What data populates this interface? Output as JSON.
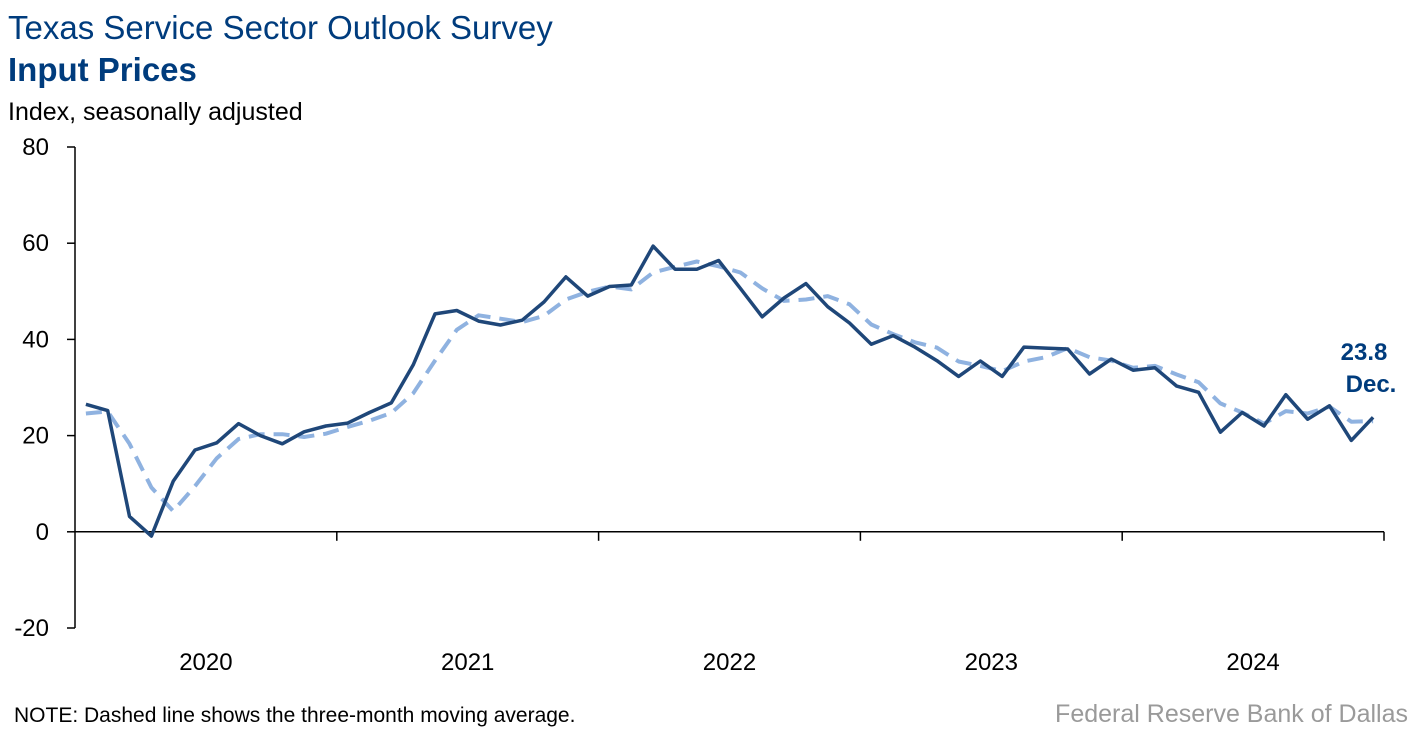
{
  "header": {
    "title": "Texas Service Sector Outlook Survey",
    "subtitle": "Input Prices",
    "units": "Index, seasonally adjusted"
  },
  "footer": {
    "note": "NOTE: Dashed line shows the three-month moving average.",
    "source": "Federal Reserve Bank of Dallas"
  },
  "colors": {
    "series": "#1f4779",
    "moving_average": "#8fb2e0",
    "text_accent": "#003c7d"
  },
  "chart_data": {
    "type": "line",
    "title": "Input Prices",
    "ylabel": "Index, seasonally adjusted",
    "ylim": [
      -20,
      80
    ],
    "yticks": [
      -20,
      0,
      20,
      40,
      60,
      80
    ],
    "xlim": [
      "2020-01",
      "2024-12"
    ],
    "xticks": [
      "2020",
      "2021",
      "2022",
      "2023",
      "2024"
    ],
    "grid": false,
    "series": [
      {
        "style": "solid",
        "color": "#1f4779",
        "x": [
          "2020-01",
          "2020-02",
          "2020-03",
          "2020-04",
          "2020-05",
          "2020-06",
          "2020-07",
          "2020-08",
          "2020-09",
          "2020-10",
          "2020-11",
          "2020-12",
          "2021-01",
          "2021-02",
          "2021-03",
          "2021-04",
          "2021-05",
          "2021-06",
          "2021-07",
          "2021-08",
          "2021-09",
          "2021-10",
          "2021-11",
          "2021-12",
          "2022-01",
          "2022-02",
          "2022-03",
          "2022-04",
          "2022-05",
          "2022-06",
          "2022-07",
          "2022-08",
          "2022-09",
          "2022-10",
          "2022-11",
          "2022-12",
          "2023-01",
          "2023-02",
          "2023-03",
          "2023-04",
          "2023-05",
          "2023-06",
          "2023-07",
          "2023-08",
          "2023-09",
          "2023-10",
          "2023-11",
          "2023-12",
          "2024-01",
          "2024-02",
          "2024-03",
          "2024-04",
          "2024-05",
          "2024-06",
          "2024-07",
          "2024-08",
          "2024-09",
          "2024-10",
          "2024-11",
          "2024-12"
        ],
        "values": [
          26.5,
          25.2,
          3.2,
          -0.9,
          10.5,
          17.0,
          18.5,
          22.5,
          20.0,
          18.3,
          20.8,
          22.0,
          22.6,
          24.8,
          26.8,
          34.7,
          45.3,
          46.0,
          43.8,
          43.0,
          44.0,
          47.8,
          53.0,
          49.0,
          51.0,
          51.3,
          59.4,
          54.6,
          54.6,
          56.4,
          50.6,
          44.7,
          48.6,
          51.6,
          46.8,
          43.4,
          39.0,
          40.8,
          38.4,
          35.6,
          32.3,
          35.5,
          32.3,
          38.4,
          38.2,
          38.0,
          32.8,
          35.9,
          33.6,
          34.1,
          30.3,
          29.0,
          20.7,
          24.8,
          22.0,
          28.5,
          23.4,
          26.2,
          19.0,
          23.8
        ]
      },
      {
        "style": "dashed",
        "color": "#8fb2e0",
        "x": [
          "2020-01",
          "2020-02",
          "2020-03",
          "2020-04",
          "2020-05",
          "2020-06",
          "2020-07",
          "2020-08",
          "2020-09",
          "2020-10",
          "2020-11",
          "2020-12",
          "2021-01",
          "2021-02",
          "2021-03",
          "2021-04",
          "2021-05",
          "2021-06",
          "2021-07",
          "2021-08",
          "2021-09",
          "2021-10",
          "2021-11",
          "2021-12",
          "2022-01",
          "2022-02",
          "2022-03",
          "2022-04",
          "2022-05",
          "2022-06",
          "2022-07",
          "2022-08",
          "2022-09",
          "2022-10",
          "2022-11",
          "2022-12",
          "2023-01",
          "2023-02",
          "2023-03",
          "2023-04",
          "2023-05",
          "2023-06",
          "2023-07",
          "2023-08",
          "2023-09",
          "2023-10",
          "2023-11",
          "2023-12",
          "2024-01",
          "2024-02",
          "2024-03",
          "2024-04",
          "2024-05",
          "2024-06",
          "2024-07",
          "2024-08",
          "2024-09",
          "2024-10",
          "2024-11",
          "2024-12"
        ],
        "values": [
          24.6,
          25.0,
          18.3,
          9.2,
          4.3,
          9.5,
          15.3,
          19.3,
          20.3,
          20.3,
          19.7,
          20.4,
          21.8,
          23.1,
          24.7,
          28.8,
          35.6,
          42.0,
          45.0,
          44.3,
          43.6,
          44.9,
          48.3,
          49.9,
          51.0,
          50.4,
          53.9,
          55.1,
          56.2,
          55.2,
          53.9,
          50.6,
          48.0,
          48.3,
          49.0,
          47.3,
          43.1,
          41.1,
          39.4,
          38.3,
          35.4,
          34.5,
          33.4,
          35.4,
          36.3,
          38.2,
          36.3,
          35.6,
          34.1,
          34.5,
          32.7,
          31.1,
          26.7,
          24.8,
          22.5,
          25.1,
          24.6,
          26.0,
          22.9,
          23.0
        ]
      }
    ],
    "annotations": [
      {
        "value": "23.8",
        "label": "Dec."
      }
    ]
  }
}
